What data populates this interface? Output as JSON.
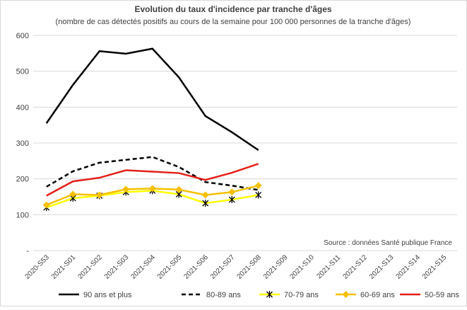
{
  "chart_data": {
    "type": "line",
    "title": "Evolution du taux d'incidence par tranche d'âges",
    "subtitle": "(nombre de cas détectés positifs au cours de la semaine pour 100 000 personnes de la tranche d'âges)",
    "annotation": "Source : données Santé publique France",
    "categories": [
      "2020-S53",
      "2021-S01",
      "2021-S02",
      "2021-S03",
      "2021-S04",
      "2021-S05",
      "2021-S06",
      "2021-S07",
      "2021-S08",
      "2021-S09",
      "2021-S10",
      "2021-S11",
      "2021-S12",
      "2021-S13",
      "2021-S14",
      "2021-S15"
    ],
    "ylim": [
      0,
      600
    ],
    "yticks": [
      {
        "value": 0,
        "label": "-"
      },
      100,
      200,
      300,
      400,
      500,
      600
    ],
    "grid": true,
    "legend": "bottom",
    "series": [
      {
        "name": "90 ans et plus",
        "color": "#000000",
        "line_style": "solid",
        "marker": "none",
        "values": [
          355,
          462,
          556,
          549,
          563,
          483,
          375,
          330,
          280,
          null,
          null,
          null,
          null,
          null,
          null,
          null
        ]
      },
      {
        "name": "80-89 ans",
        "color": "#000000",
        "line_style": "dashed",
        "marker": "none",
        "values": [
          178,
          221,
          245,
          253,
          261,
          233,
          191,
          181,
          169,
          null,
          null,
          null,
          null,
          null,
          null,
          null
        ]
      },
      {
        "name": "70-79 ans",
        "color": "#ffff00",
        "line_style": "solid",
        "marker": "asterisk",
        "values": [
          120,
          146,
          153,
          163,
          167,
          157,
          132,
          142,
          155,
          null,
          null,
          null,
          null,
          null,
          null,
          null
        ]
      },
      {
        "name": "60-69 ans",
        "color": "#f5c000",
        "line_style": "solid",
        "marker": "diamond",
        "values": [
          127,
          157,
          155,
          171,
          173,
          170,
          155,
          163,
          181,
          null,
          null,
          null,
          null,
          null,
          null,
          null
        ]
      },
      {
        "name": "50-59 ans",
        "color": "#e3201b",
        "line_style": "solid",
        "marker": "none",
        "values": [
          153,
          193,
          203,
          224,
          220,
          216,
          197,
          217,
          242,
          null,
          null,
          null,
          null,
          null,
          null,
          null
        ]
      }
    ]
  }
}
